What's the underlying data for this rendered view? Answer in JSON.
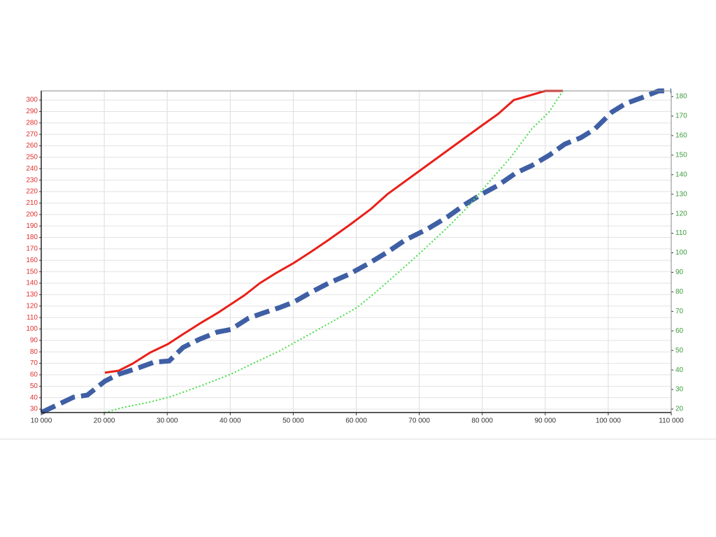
{
  "chart_data": {
    "type": "line",
    "xlim": [
      10000,
      110000
    ],
    "xticks": [
      {
        "value": 10000,
        "label": "10 000"
      },
      {
        "value": 20000,
        "label": "20 000"
      },
      {
        "value": 30000,
        "label": "30 000"
      },
      {
        "value": 40000,
        "label": "40 000"
      },
      {
        "value": 50000,
        "label": "50 000"
      },
      {
        "value": 60000,
        "label": "60 000"
      },
      {
        "value": 70000,
        "label": "70 000"
      },
      {
        "value": 80000,
        "label": "80 000"
      },
      {
        "value": 90000,
        "label": "90 000"
      },
      {
        "value": 100000,
        "label": "100 000"
      },
      {
        "value": 110000,
        "label": "110 000"
      }
    ],
    "ylim": [
      27,
      308
    ],
    "yticks": [
      30,
      40,
      50,
      60,
      70,
      80,
      90,
      100,
      110,
      120,
      130,
      140,
      150,
      160,
      170,
      180,
      190,
      200,
      210,
      220,
      230,
      240,
      250,
      260,
      270,
      280,
      290,
      300
    ],
    "y2lim": [
      18.2,
      182.9
    ],
    "y2ticks": [
      20,
      30,
      40,
      50,
      60,
      70,
      80,
      90,
      100,
      110,
      120,
      130,
      140,
      150,
      160,
      170,
      180
    ],
    "ytick_color": "#e03030",
    "y2tick_color": "#3a9a3a",
    "grid": true,
    "series": [
      {
        "color": "#e8201a",
        "style": "solid",
        "width": 3,
        "x": [
          20100,
          22300,
          24500,
          27300,
          30100,
          32500,
          35100,
          37900,
          40100,
          42300,
          44700,
          47300,
          50100,
          52800,
          55600,
          58900,
          62300,
          65000,
          70000,
          75000,
          80000,
          82500,
          85000,
          90000,
          92800
        ],
        "values": [
          61.8,
          63.6,
          69.7,
          79.5,
          86.8,
          95.4,
          104.5,
          113.7,
          121.6,
          129.6,
          140,
          149,
          157.7,
          167.4,
          177.8,
          190.7,
          204.7,
          218,
          238,
          258,
          278,
          287.8,
          300,
          308,
          308
        ]
      },
      {
        "color": "#3f5fa5",
        "style": "dashed",
        "width": 7,
        "x": [
          10000,
          12300,
          15100,
          17300,
          20100,
          22300,
          25100,
          27900,
          30300,
          32500,
          35100,
          37900,
          40100,
          42900,
          45400,
          47800,
          50100,
          52800,
          55600,
          58900,
          62300,
          65000,
          67800,
          71200,
          74500,
          77300,
          80000,
          82500,
          85400,
          87800,
          90600,
          93100,
          95600,
          97800,
          100600,
          102800,
          105300,
          108000,
          110000
        ],
        "values": [
          27,
          33,
          40.4,
          42.2,
          54.4,
          60.5,
          65.4,
          71,
          72,
          83.8,
          91,
          97.2,
          99.6,
          109.4,
          114.3,
          118.6,
          123.5,
          132,
          140,
          147.9,
          158.3,
          167.4,
          177.8,
          187,
          198,
          209,
          218,
          225.5,
          236.5,
          242.6,
          251.7,
          261.5,
          267,
          274.4,
          289.6,
          297,
          302,
          308,
          308
        ]
      },
      {
        "color": "#44dd44",
        "style": "dotted",
        "width": 2,
        "axis": "y2",
        "x": [
          20100,
          22900,
          27300,
          30600,
          35600,
          40100,
          44500,
          47800,
          51200,
          55600,
          60100,
          62800,
          65600,
          70000,
          74500,
          77800,
          81100,
          84500,
          87800,
          90600,
          92800
        ],
        "values": [
          18.2,
          20.7,
          23.6,
          26.4,
          32.2,
          37.9,
          44.7,
          49.7,
          55.8,
          63.7,
          71.9,
          79,
          86.9,
          99.5,
          113,
          123.8,
          136.3,
          148.8,
          163.2,
          172.1,
          182.9
        ]
      }
    ]
  }
}
